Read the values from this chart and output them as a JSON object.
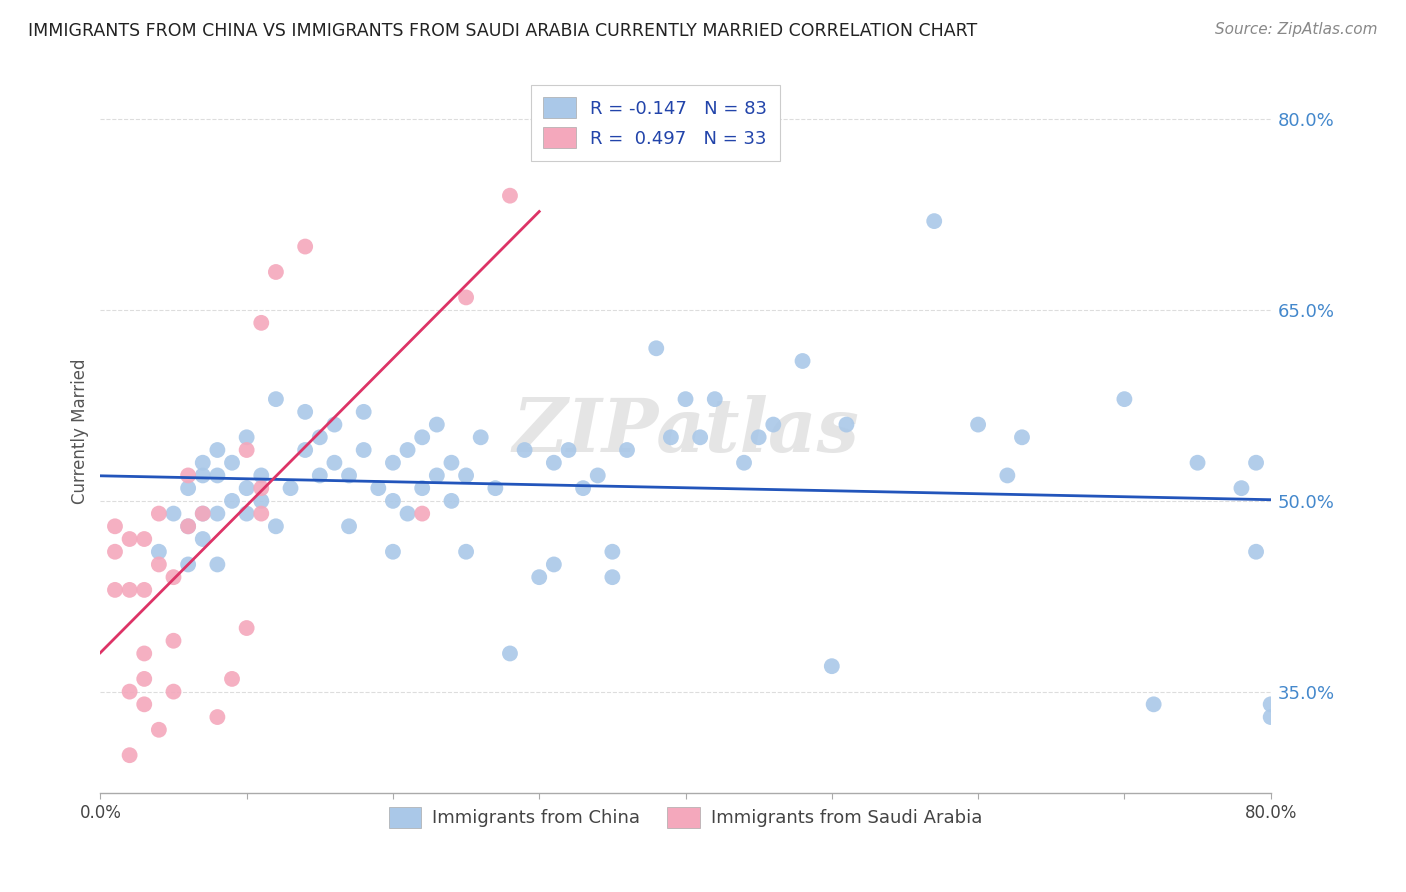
{
  "title": "IMMIGRANTS FROM CHINA VS IMMIGRANTS FROM SAUDI ARABIA CURRENTLY MARRIED CORRELATION CHART",
  "source": "Source: ZipAtlas.com",
  "ylabel": "Currently Married",
  "xlim": [
    0.0,
    0.8
  ],
  "ylim": [
    0.27,
    0.84
  ],
  "china_R": -0.147,
  "china_N": 83,
  "saudi_R": 0.497,
  "saudi_N": 33,
  "china_color": "#aac8e8",
  "saudi_color": "#f4a8bc",
  "china_line_color": "#2255bb",
  "saudi_line_color": "#dd3366",
  "legend_china_label": "Immigrants from China",
  "legend_saudi_label": "Immigrants from Saudi Arabia",
  "watermark": "ZIPatlas",
  "background_color": "#ffffff",
  "grid_color": "#dddddd",
  "china_x": [
    0.04,
    0.05,
    0.06,
    0.06,
    0.06,
    0.07,
    0.07,
    0.07,
    0.07,
    0.08,
    0.08,
    0.08,
    0.08,
    0.09,
    0.09,
    0.1,
    0.1,
    0.1,
    0.11,
    0.11,
    0.12,
    0.12,
    0.13,
    0.14,
    0.14,
    0.15,
    0.15,
    0.16,
    0.16,
    0.17,
    0.17,
    0.18,
    0.18,
    0.19,
    0.2,
    0.2,
    0.2,
    0.21,
    0.21,
    0.22,
    0.22,
    0.23,
    0.23,
    0.24,
    0.24,
    0.25,
    0.25,
    0.26,
    0.27,
    0.28,
    0.29,
    0.3,
    0.31,
    0.31,
    0.32,
    0.33,
    0.34,
    0.35,
    0.35,
    0.36,
    0.38,
    0.39,
    0.4,
    0.41,
    0.42,
    0.44,
    0.45,
    0.46,
    0.48,
    0.5,
    0.51,
    0.57,
    0.6,
    0.62,
    0.63,
    0.7,
    0.72,
    0.75,
    0.78,
    0.79,
    0.79,
    0.8,
    0.8
  ],
  "china_y": [
    0.46,
    0.49,
    0.45,
    0.48,
    0.51,
    0.47,
    0.49,
    0.52,
    0.53,
    0.45,
    0.49,
    0.52,
    0.54,
    0.5,
    0.53,
    0.49,
    0.51,
    0.55,
    0.5,
    0.52,
    0.48,
    0.58,
    0.51,
    0.54,
    0.57,
    0.52,
    0.55,
    0.53,
    0.56,
    0.48,
    0.52,
    0.54,
    0.57,
    0.51,
    0.46,
    0.5,
    0.53,
    0.49,
    0.54,
    0.51,
    0.55,
    0.52,
    0.56,
    0.5,
    0.53,
    0.46,
    0.52,
    0.55,
    0.51,
    0.38,
    0.54,
    0.44,
    0.45,
    0.53,
    0.54,
    0.51,
    0.52,
    0.44,
    0.46,
    0.54,
    0.62,
    0.55,
    0.58,
    0.55,
    0.58,
    0.53,
    0.55,
    0.56,
    0.61,
    0.37,
    0.56,
    0.72,
    0.56,
    0.52,
    0.55,
    0.58,
    0.34,
    0.53,
    0.51,
    0.53,
    0.46,
    0.33,
    0.34
  ],
  "saudi_x": [
    0.01,
    0.01,
    0.01,
    0.02,
    0.02,
    0.02,
    0.02,
    0.03,
    0.03,
    0.03,
    0.03,
    0.03,
    0.04,
    0.04,
    0.04,
    0.05,
    0.05,
    0.05,
    0.06,
    0.06,
    0.07,
    0.08,
    0.09,
    0.1,
    0.1,
    0.11,
    0.11,
    0.11,
    0.12,
    0.14,
    0.22,
    0.25,
    0.28
  ],
  "saudi_y": [
    0.43,
    0.46,
    0.48,
    0.3,
    0.35,
    0.43,
    0.47,
    0.34,
    0.36,
    0.38,
    0.43,
    0.47,
    0.32,
    0.45,
    0.49,
    0.35,
    0.39,
    0.44,
    0.48,
    0.52,
    0.49,
    0.33,
    0.36,
    0.4,
    0.54,
    0.49,
    0.51,
    0.64,
    0.68,
    0.7,
    0.49,
    0.66,
    0.74
  ],
  "y_ticks": [
    0.35,
    0.5,
    0.65,
    0.8
  ],
  "y_tick_labels": [
    "35.0%",
    "50.0%",
    "65.0%",
    "80.0%"
  ],
  "x_ticks": [
    0.0,
    0.1,
    0.2,
    0.3,
    0.4,
    0.5,
    0.6,
    0.7,
    0.8
  ],
  "x_tick_labels": [
    "0.0%",
    "",
    "",
    "",
    "",
    "",
    "",
    "",
    "80.0%"
  ]
}
